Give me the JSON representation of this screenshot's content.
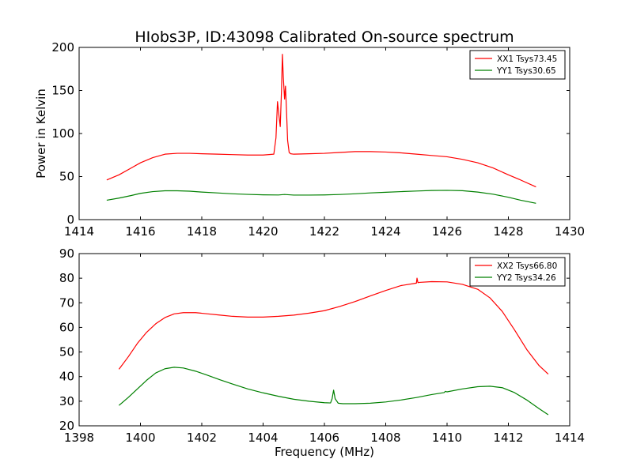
{
  "title": "HIobs3P, ID:43098 Calibrated On-source spectrum",
  "chart_data": [
    {
      "type": "line",
      "ylabel": "Power in Kelvin",
      "xlabel": "",
      "xlim": [
        1414,
        1430
      ],
      "ylim": [
        0,
        200
      ],
      "xticks": [
        1414,
        1416,
        1418,
        1420,
        1422,
        1424,
        1426,
        1428,
        1430
      ],
      "yticks": [
        0,
        50,
        100,
        150,
        200
      ],
      "grid": false,
      "legend": "top-right",
      "series": [
        {
          "name": "XX1 Tsys73.45",
          "color": "#ff0000",
          "x": [
            1414.9,
            1415.3,
            1415.7,
            1416.0,
            1416.4,
            1416.8,
            1417.2,
            1417.6,
            1418.0,
            1418.5,
            1419.0,
            1419.5,
            1420.0,
            1420.35,
            1420.42,
            1420.47,
            1420.52,
            1420.56,
            1420.6,
            1420.63,
            1420.66,
            1420.7,
            1420.73,
            1420.76,
            1420.8,
            1420.85,
            1420.9,
            1421.0,
            1421.5,
            1422.0,
            1422.5,
            1423.0,
            1423.5,
            1424.0,
            1424.5,
            1425.0,
            1425.5,
            1426.0,
            1426.5,
            1427.0,
            1427.5,
            1428.0,
            1428.4,
            1428.9
          ],
          "values": [
            46,
            52,
            60,
            66,
            72,
            76,
            77,
            77,
            76.5,
            76,
            75.5,
            75,
            75,
            76,
            95,
            137,
            120,
            108,
            150,
            192,
            165,
            140,
            155,
            130,
            92,
            78,
            76.5,
            76,
            76.5,
            77,
            78,
            79,
            79,
            78.5,
            77.5,
            76,
            74.5,
            73,
            70,
            66,
            60,
            52,
            46,
            38
          ]
        },
        {
          "name": "YY1 Tsys30.65",
          "color": "#008000",
          "x": [
            1414.9,
            1415.3,
            1415.7,
            1416.0,
            1416.4,
            1416.8,
            1417.2,
            1417.6,
            1418.0,
            1418.5,
            1419.0,
            1419.5,
            1420.0,
            1420.5,
            1420.7,
            1421.0,
            1421.5,
            1422.0,
            1422.5,
            1423.0,
            1423.5,
            1424.0,
            1424.5,
            1425.0,
            1425.5,
            1426.0,
            1426.5,
            1427.0,
            1427.5,
            1428.0,
            1428.4,
            1428.9
          ],
          "values": [
            22.5,
            25,
            28,
            30.5,
            32.5,
            33.5,
            33.5,
            33,
            32,
            31,
            30,
            29.3,
            28.8,
            28.6,
            29.2,
            28.5,
            28.5,
            28.7,
            29.2,
            30,
            31,
            31.8,
            32.5,
            33.2,
            33.8,
            34,
            33.6,
            32,
            29.5,
            26,
            22.5,
            19
          ]
        }
      ]
    },
    {
      "type": "line",
      "xlabel": "Frequency (MHz)",
      "ylabel": "",
      "xlim": [
        1398,
        1414
      ],
      "ylim": [
        20,
        90
      ],
      "xticks": [
        1398,
        1400,
        1402,
        1404,
        1406,
        1408,
        1410,
        1412,
        1414
      ],
      "yticks": [
        20,
        30,
        40,
        50,
        60,
        70,
        80,
        90
      ],
      "grid": false,
      "legend": "top-right",
      "series": [
        {
          "name": "XX2 Tsys66.80",
          "color": "#ff0000",
          "x": [
            1399.3,
            1399.6,
            1399.9,
            1400.2,
            1400.5,
            1400.8,
            1401.1,
            1401.4,
            1401.8,
            1402.2,
            1402.6,
            1403.0,
            1403.5,
            1404.0,
            1404.5,
            1405.0,
            1405.5,
            1406.0,
            1406.5,
            1407.0,
            1407.5,
            1408.0,
            1408.5,
            1409.0,
            1409.02,
            1409.05,
            1409.1,
            1409.5,
            1410.0,
            1410.5,
            1411.0,
            1411.4,
            1411.8,
            1412.2,
            1412.6,
            1413.0,
            1413.3
          ],
          "values": [
            43,
            48,
            53.5,
            58,
            61.5,
            64,
            65.5,
            66,
            66,
            65.5,
            65,
            64.5,
            64.2,
            64.2,
            64.5,
            65,
            65.8,
            66.8,
            68.5,
            70.5,
            72.8,
            75,
            77,
            78,
            80,
            78.2,
            78.3,
            78.6,
            78.5,
            77.5,
            75.5,
            72,
            66.5,
            59,
            51,
            44.5,
            41
          ]
        },
        {
          "name": "YY2 Tsys34.26",
          "color": "#008000",
          "x": [
            1399.3,
            1399.6,
            1399.9,
            1400.2,
            1400.5,
            1400.8,
            1401.1,
            1401.4,
            1401.8,
            1402.2,
            1402.6,
            1403.0,
            1403.5,
            1404.0,
            1404.5,
            1405.0,
            1405.5,
            1406.0,
            1406.2,
            1406.25,
            1406.3,
            1406.35,
            1406.45,
            1406.6,
            1407.0,
            1407.5,
            1408.0,
            1408.5,
            1409.0,
            1409.5,
            1409.9,
            1409.95,
            1410.0,
            1410.5,
            1411.0,
            1411.4,
            1411.8,
            1412.2,
            1412.6,
            1413.0,
            1413.3
          ],
          "values": [
            28.3,
            31.5,
            35,
            38.5,
            41.5,
            43.2,
            43.8,
            43.5,
            42.2,
            40.5,
            38.7,
            37,
            35,
            33.4,
            32,
            30.8,
            30,
            29.4,
            29.3,
            31,
            34.5,
            31,
            29.2,
            29,
            29,
            29.2,
            29.7,
            30.5,
            31.5,
            32.7,
            33.5,
            34,
            33.8,
            35,
            35.9,
            36.1,
            35.5,
            33.5,
            30.5,
            27,
            24.5
          ]
        }
      ]
    }
  ]
}
